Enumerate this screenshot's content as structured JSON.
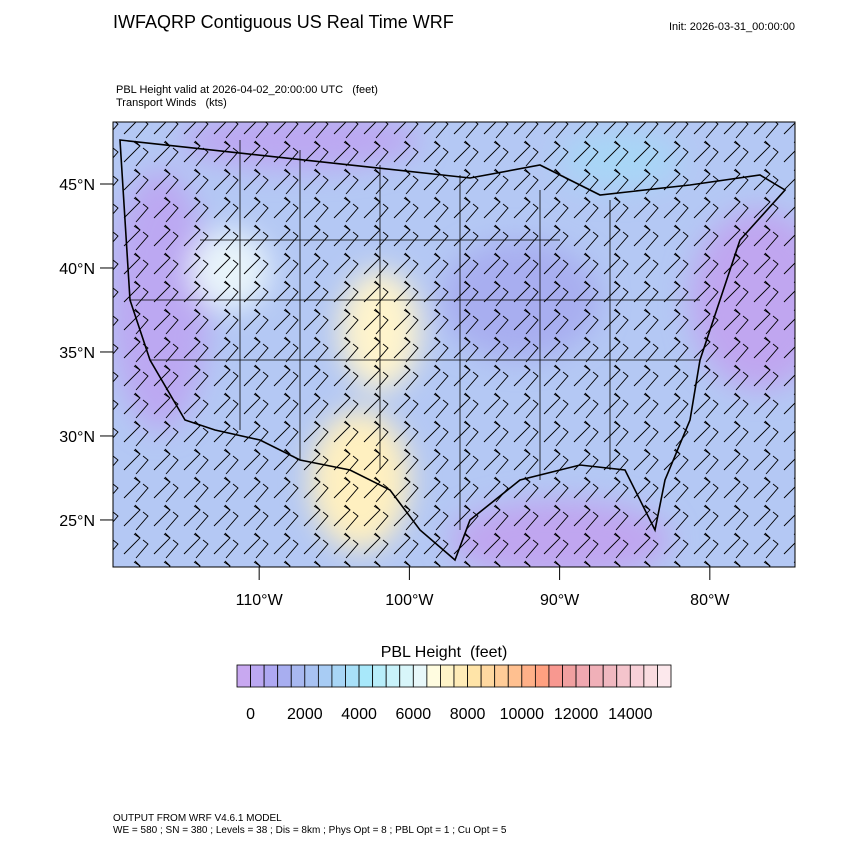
{
  "header": {
    "title": "IWFAQRP Contiguous US Real Time WRF",
    "init": "Init: 2026-03-31_00:00:00"
  },
  "map": {
    "subtitle": "PBL Height valid at 2026-04-02_20:00:00 UTC   (feet)",
    "subtitle2": "Transport Winds   (kts)",
    "lonlim": [
      -119.73,
      -74.33
    ],
    "latlim": [
      22.2,
      48.69
    ],
    "lat_ticks": [
      {
        "value": 45,
        "label": "45°N"
      },
      {
        "value": 40,
        "label": "40°N"
      },
      {
        "value": 35,
        "label": "35°N"
      },
      {
        "value": 30,
        "label": "30°N"
      },
      {
        "value": 25,
        "label": "25°N"
      }
    ],
    "lon_ticks": [
      {
        "value": -110,
        "label": "110°W"
      },
      {
        "value": -100,
        "label": "100°W"
      },
      {
        "value": -90,
        "label": "90°W"
      },
      {
        "value": -80,
        "label": "80°W"
      }
    ]
  },
  "colorbar": {
    "title": "PBL Height  (feet)",
    "levels": [
      0,
      500,
      1000,
      1500,
      2000,
      2500,
      3000,
      3500,
      4000,
      4500,
      5000,
      5500,
      6000,
      6500,
      7000,
      7500,
      8000,
      8500,
      9000,
      9500,
      10000,
      10500,
      11000,
      11500,
      12000,
      12500,
      13000,
      13500,
      14000,
      14500,
      15000
    ],
    "ticks": [
      0,
      2000,
      4000,
      6000,
      8000,
      10000,
      12000,
      14000
    ],
    "colors": [
      "#c8a8f0",
      "#bba8f2",
      "#aea8f2",
      "#a8aef0",
      "#a8b8f0",
      "#a8c2f2",
      "#a8ccf4",
      "#a8d6f6",
      "#a8e0f8",
      "#a8e8fa",
      "#b8eefa",
      "#c8f2fa",
      "#d8f6fa",
      "#e8f8fa",
      "#fffce0",
      "#fff4c8",
      "#ffecb8",
      "#ffe4a8",
      "#ffd8a0",
      "#ffcc98",
      "#ffc090",
      "#ffb088",
      "#ffa080",
      "#f89890",
      "#f0a0a0",
      "#f0a8b0",
      "#f0b0b8",
      "#f0b8c0",
      "#f4c4cc",
      "#f8d0d8",
      "#fadce0",
      "#fce8ec"
    ]
  },
  "footer": {
    "line1": "OUTPUT FROM WRF V4.6.1 MODEL",
    "line2": "WE = 580 ; SN = 380 ; Levels = 38 ; Dis = 8km ; Phys Opt = 8 ; PBL Opt = 1 ; Cu Opt = 5"
  }
}
